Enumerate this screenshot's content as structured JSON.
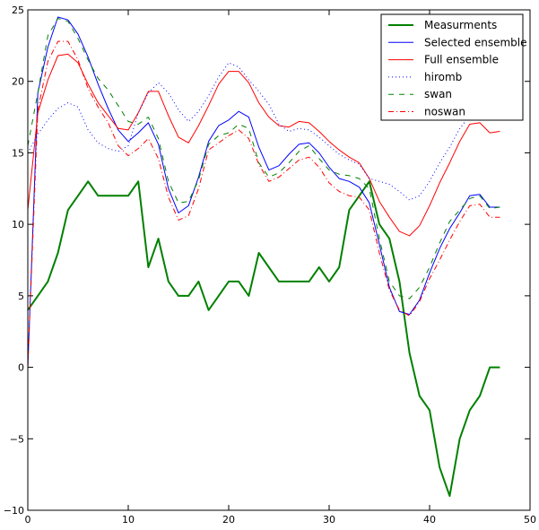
{
  "chart_data": {
    "type": "line",
    "title": "",
    "xlabel": "",
    "ylabel": "",
    "xlim": [
      0,
      50
    ],
    "ylim": [
      -10,
      25
    ],
    "xticks": [
      "0",
      "10",
      "20",
      "30",
      "40",
      "50"
    ],
    "yticks": [
      "−10",
      "−5",
      "0",
      "5",
      "10",
      "15",
      "20",
      "25"
    ],
    "grid": false,
    "legend_position": "top-right",
    "x": [
      0,
      1,
      2,
      3,
      4,
      5,
      6,
      7,
      8,
      9,
      10,
      11,
      12,
      13,
      14,
      15,
      16,
      17,
      18,
      19,
      20,
      21,
      22,
      23,
      24,
      25,
      26,
      27,
      28,
      29,
      30,
      31,
      32,
      33,
      34,
      35,
      36,
      37,
      38,
      39,
      40,
      41,
      42,
      43,
      44,
      45,
      46,
      47
    ],
    "series": [
      {
        "name": "Measurments",
        "color": "#008000",
        "style": "solid-thick",
        "values": [
          4,
          5,
          6,
          8,
          11,
          12,
          13,
          12,
          12,
          12,
          12,
          13,
          7,
          9,
          6,
          5,
          5,
          6,
          4,
          5,
          6,
          6,
          5,
          8,
          7,
          6,
          6,
          6,
          6,
          7,
          6,
          7,
          11,
          12,
          13,
          10,
          9,
          6,
          1,
          -2,
          -3,
          -7,
          -9,
          -5,
          -3,
          -2,
          0,
          0
        ]
      },
      {
        "name": "Selected ensemble",
        "color": "#0000ff",
        "style": "solid",
        "values": [
          0,
          19.2,
          22.4,
          24.5,
          24.3,
          23.3,
          21.7,
          19.8,
          18.1,
          16.6,
          15.8,
          16.4,
          17.1,
          15.6,
          12.5,
          10.8,
          11.3,
          13.3,
          15.8,
          16.9,
          17.3,
          17.9,
          17.5,
          15.4,
          13.8,
          14.1,
          14.9,
          15.6,
          15.7,
          15.0,
          14.0,
          13.2,
          13.0,
          12.6,
          11.5,
          8.6,
          5.6,
          3.9,
          3.7,
          4.7,
          6.6,
          8.3,
          9.7,
          10.8,
          12.0,
          12.1,
          11.2,
          11.2
        ]
      },
      {
        "name": "Full ensemble",
        "color": "#ff0000",
        "style": "solid",
        "values": [
          11,
          17.8,
          20.1,
          21.8,
          21.9,
          21.3,
          19.8,
          18.5,
          17.6,
          16.7,
          16.6,
          17.8,
          19.3,
          19.3,
          17.6,
          16.1,
          15.7,
          16.9,
          18.3,
          19.8,
          20.7,
          20.7,
          19.9,
          18.5,
          17.5,
          16.9,
          16.8,
          17.2,
          17.1,
          16.5,
          15.8,
          15.2,
          14.7,
          14.3,
          13.2,
          11.6,
          10.5,
          9.5,
          9.2,
          9.9,
          11.3,
          12.9,
          14.3,
          15.8,
          17.0,
          17.1,
          16.4,
          16.5
        ]
      },
      {
        "name": "hiromb",
        "color": "#0000ff",
        "style": "dotted",
        "values": [
          15,
          16.3,
          17.3,
          18.1,
          18.5,
          18.2,
          16.6,
          15.7,
          15.3,
          15.1,
          15.5,
          17.8,
          19.2,
          19.9,
          19.2,
          18.0,
          17.2,
          17.9,
          19.0,
          20.3,
          21.3,
          21.0,
          20.1,
          19.3,
          18.4,
          17.0,
          16.5,
          16.7,
          16.6,
          16.1,
          15.5,
          14.9,
          14.5,
          14.2,
          13.2,
          13.0,
          12.8,
          12.3,
          11.7,
          12.0,
          13.0,
          14.3,
          15.4,
          16.7,
          17.6,
          null,
          null,
          null
        ]
      },
      {
        "name": "swan",
        "color": "#008000",
        "style": "dashed",
        "values": [
          15.5,
          19.2,
          23.2,
          24.4,
          24.2,
          23.0,
          21.5,
          20.2,
          19.4,
          18.3,
          17.2,
          17.0,
          17.5,
          16.0,
          13.0,
          11.5,
          11.6,
          13.1,
          15.6,
          16.2,
          16.4,
          17.0,
          16.7,
          14.3,
          13.3,
          13.6,
          14.3,
          15.1,
          15.5,
          14.6,
          13.8,
          13.5,
          13.4,
          13.2,
          12.5,
          9.0,
          6.0,
          5.0,
          4.8,
          5.6,
          7.0,
          8.7,
          10.2,
          11.0,
          11.8,
          12.0,
          11.1,
          11.2
        ]
      },
      {
        "name": "noswan",
        "color": "#ff0000",
        "style": "dashdot",
        "values": [
          0,
          18.0,
          21.4,
          22.8,
          22.8,
          21.5,
          19.5,
          18.2,
          17.1,
          15.5,
          14.8,
          15.3,
          16.0,
          14.6,
          11.9,
          10.3,
          10.6,
          12.5,
          15.2,
          15.7,
          16.2,
          16.6,
          16.0,
          14.2,
          13.0,
          13.3,
          13.9,
          14.5,
          14.7,
          14.0,
          12.9,
          12.3,
          12.0,
          11.9,
          11.0,
          8.0,
          5.4,
          4.0,
          3.6,
          4.6,
          6.2,
          7.5,
          8.9,
          10.2,
          11.3,
          11.4,
          10.5,
          10.5
        ]
      }
    ]
  }
}
